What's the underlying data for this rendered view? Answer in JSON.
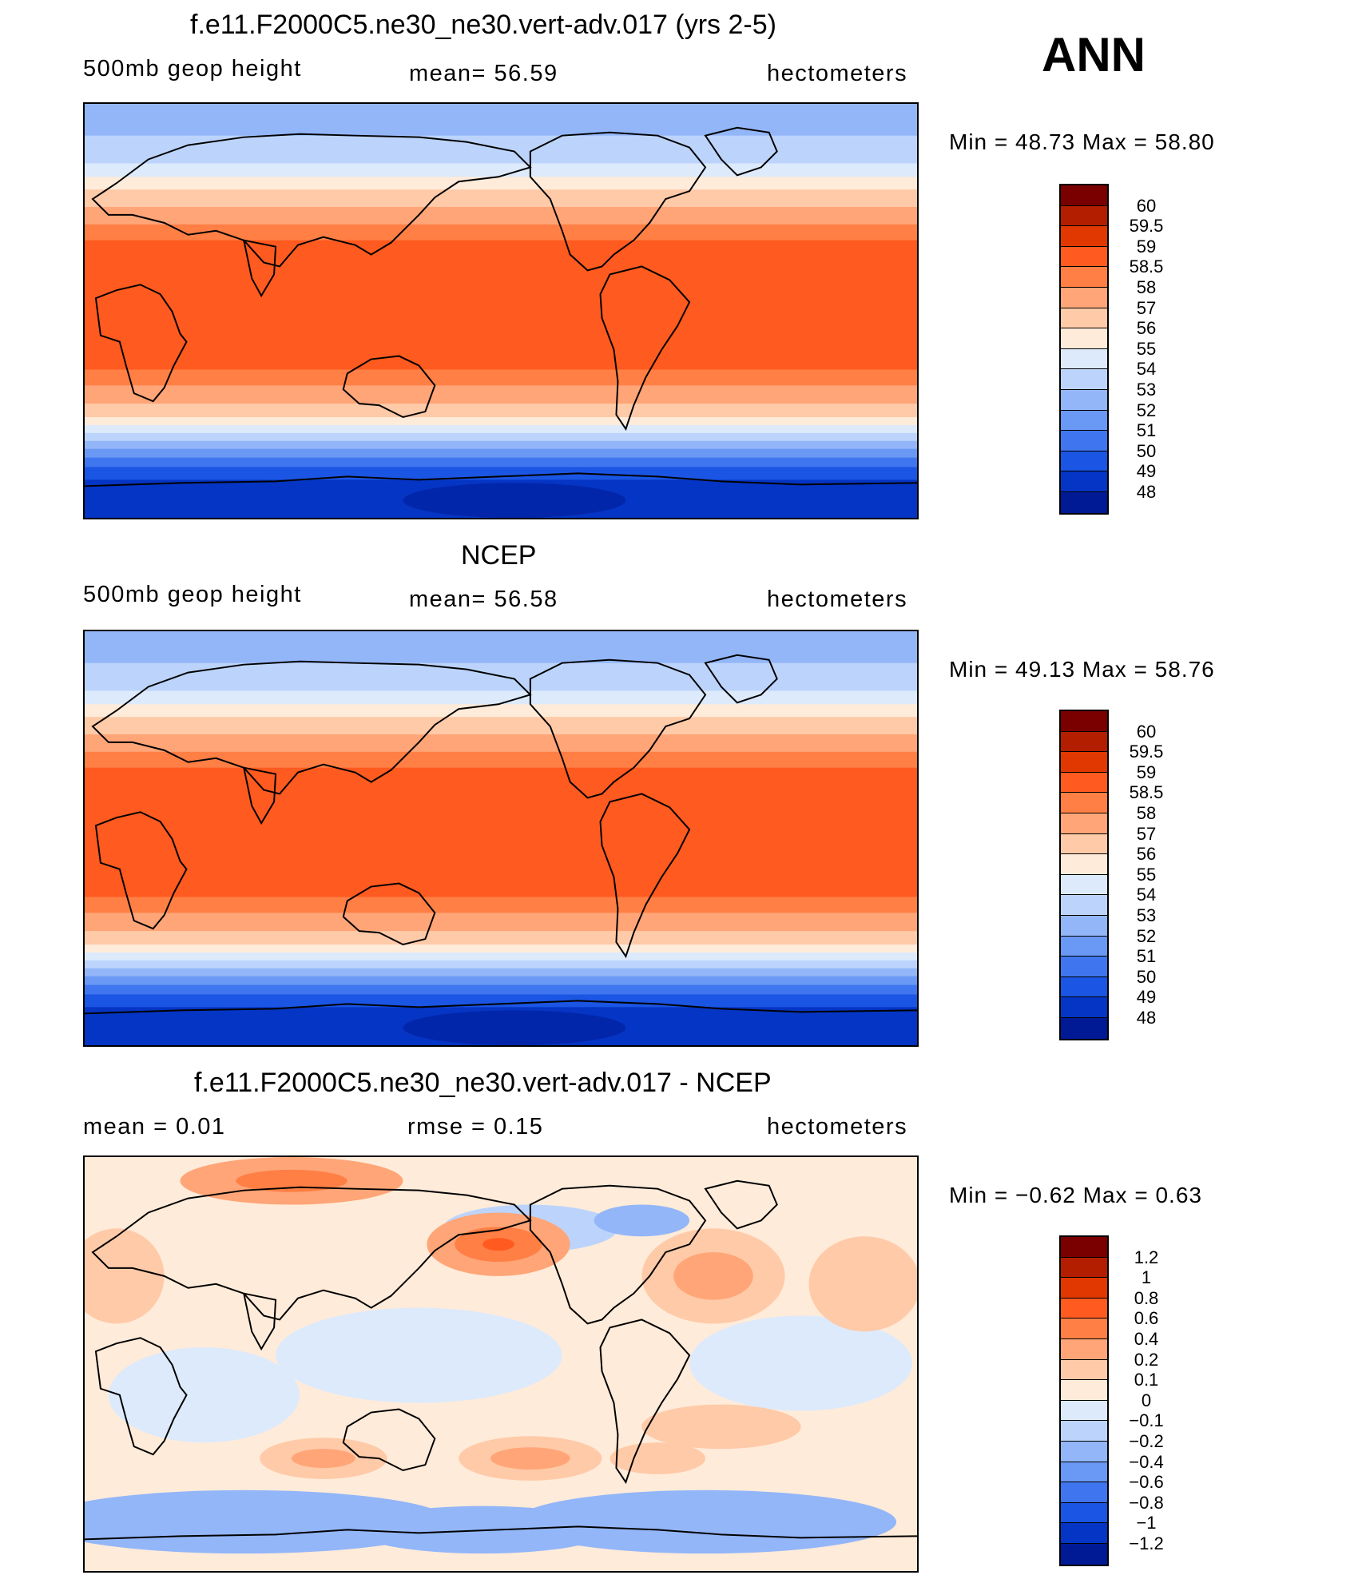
{
  "season": "ANN",
  "panels": [
    {
      "title": "f.e11.F2000C5.ne30_ne30.vert-adv.017 (yrs 2-5)",
      "left_label": "500mb  geop  height",
      "center_label": "mean=   56.59",
      "right_label": "hectometers",
      "minmax": "Min  =    48.73  Max  =    58.80",
      "kind": "field",
      "colorbar": {
        "colors": [
          "#7a0000",
          "#b31e00",
          "#e03800",
          "#ff5a1f",
          "#ff7f45",
          "#ffa577",
          "#ffcaa8",
          "#ffebd9",
          "#dceafc",
          "#bcd4fb",
          "#93b6f9",
          "#6a98f5",
          "#3f76ef",
          "#1a55e3",
          "#0535c4",
          "#001a96"
        ],
        "labels": [
          "60",
          "59.5",
          "59",
          "58.5",
          "58",
          "57",
          "56",
          "55",
          "54",
          "53",
          "52",
          "51",
          "50",
          "49",
          "48"
        ]
      }
    },
    {
      "title": "NCEP",
      "left_label": "500mb  geop  height",
      "center_label": "mean=   56.58",
      "right_label": "hectometers",
      "minmax": "Min  =    49.13  Max  =    58.76",
      "kind": "field",
      "colorbar": {
        "colors": [
          "#7a0000",
          "#b31e00",
          "#e03800",
          "#ff5a1f",
          "#ff7f45",
          "#ffa577",
          "#ffcaa8",
          "#ffebd9",
          "#dceafc",
          "#bcd4fb",
          "#93b6f9",
          "#6a98f5",
          "#3f76ef",
          "#1a55e3",
          "#0535c4",
          "#001a96"
        ],
        "labels": [
          "60",
          "59.5",
          "59",
          "58.5",
          "58",
          "57",
          "56",
          "55",
          "54",
          "53",
          "52",
          "51",
          "50",
          "49",
          "48"
        ]
      }
    },
    {
      "title": "f.e11.F2000C5.ne30_ne30.vert-adv.017 - NCEP",
      "left_label": "mean  =      0.01",
      "center_label": "rmse  =      0.15",
      "right_label": "hectometers",
      "minmax": "Min  =    −0.62  Max  =      0.63",
      "kind": "diff",
      "colorbar": {
        "colors": [
          "#7a0000",
          "#b31e00",
          "#e03800",
          "#ff5a1f",
          "#ff7f45",
          "#ffa577",
          "#ffcaa8",
          "#ffebd9",
          "#dceafc",
          "#bcd4fb",
          "#93b6f9",
          "#6a98f5",
          "#3f76ef",
          "#1a55e3",
          "#0535c4",
          "#001a96"
        ],
        "labels": [
          "1.2",
          "1",
          "0.8",
          "0.6",
          "0.4",
          "0.2",
          "0.1",
          "0",
          "−0.1",
          "−0.2",
          "−0.4",
          "−0.6",
          "−0.8",
          "−1",
          "−1.2"
        ]
      }
    }
  ]
}
